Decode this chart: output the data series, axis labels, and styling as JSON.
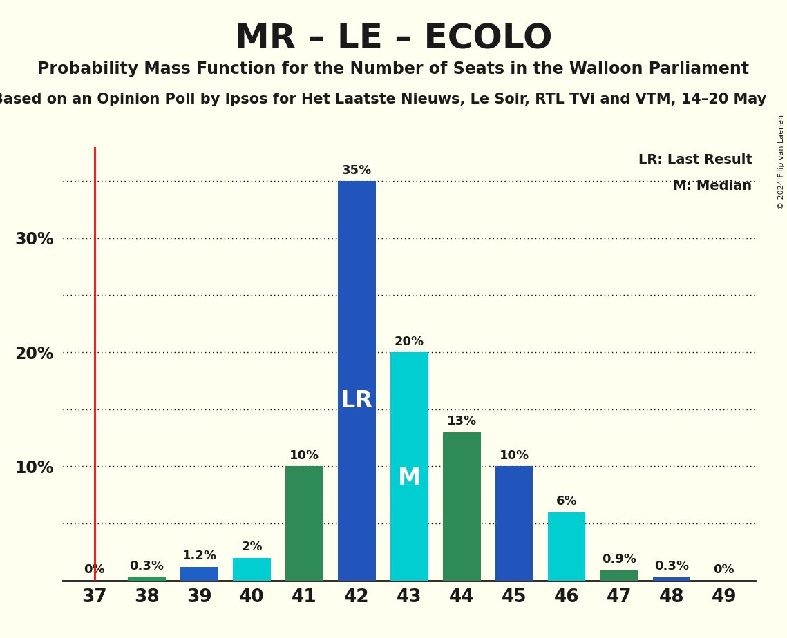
{
  "title": "MR – LE – ECOLO",
  "subtitle": "Probability Mass Function for the Number of Seats in the Walloon Parliament",
  "subtitle2": "Based on an Opinion Poll by Ipsos for Het Laatste Nieuws, Le Soir, RTL TVi and VTM, 14–20 May",
  "copyright": "© 2024 Filip van Laenen",
  "seats": [
    37,
    38,
    39,
    40,
    41,
    42,
    43,
    44,
    45,
    46,
    47,
    48,
    49
  ],
  "values": [
    0.0,
    0.3,
    1.2,
    2.0,
    10.0,
    35.0,
    20.0,
    13.0,
    10.0,
    6.0,
    0.9,
    0.3,
    0.0
  ],
  "labels": [
    "0%",
    "0.3%",
    "1.2%",
    "2%",
    "10%",
    "35%",
    "20%",
    "13%",
    "10%",
    "6%",
    "0.9%",
    "0.3%",
    "0%"
  ],
  "colors": {
    "37": "#2e8b57",
    "38": "#1a9e5c",
    "39": "#1e5fc8",
    "40": "#00ced1",
    "41": "#2e8b57",
    "42": "#2255bb",
    "43": "#00ced1",
    "44": "#2e8b57",
    "45": "#2255bb",
    "46": "#00ced1",
    "47": "#2e8b57",
    "48": "#2255bb",
    "49": "#2255bb"
  },
  "lr_seat": 42,
  "median_seat": 43,
  "lr_line_seat": 37,
  "background_color": "#fffff0",
  "ylim": [
    0,
    38
  ],
  "yticks": [
    10,
    20,
    30
  ],
  "grid_yticks": [
    5,
    10,
    15,
    20,
    25,
    30,
    35
  ],
  "bar_text_color": "#1a1a1a",
  "title_fontsize": 36,
  "subtitle_fontsize": 17,
  "subtitle2_fontsize": 15
}
